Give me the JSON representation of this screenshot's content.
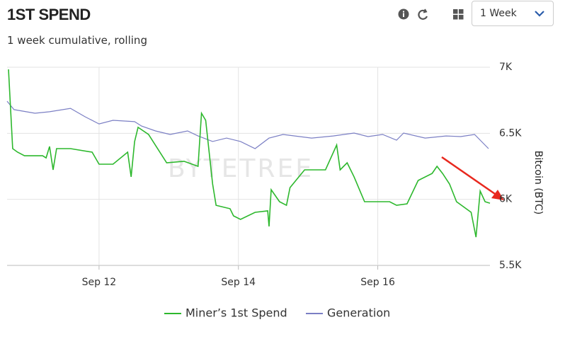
{
  "header": {
    "title": "1ST SPEND",
    "subtitle": "1 week cumulative, rolling",
    "period": "1 Week"
  },
  "chart_data": {
    "type": "line",
    "watermark": "BYTETREE",
    "y_label": "Bitcoin (BTC)",
    "xlim": [
      10.68,
      17.61
    ],
    "xticks": [
      {
        "value": 12,
        "label": "Sep 12"
      },
      {
        "value": 14,
        "label": "Sep 14"
      },
      {
        "value": 16,
        "label": "Sep 16"
      }
    ],
    "ylim": [
      5500,
      7000
    ],
    "yticks": [
      {
        "value": 5500,
        "label": "5.5K"
      },
      {
        "value": 6000,
        "label": "6K"
      },
      {
        "value": 6500,
        "label": "6.5K"
      },
      {
        "value": 7000,
        "label": "7K"
      }
    ],
    "grid": true,
    "series": [
      {
        "name": "Miner’s 1st Spend",
        "color": "#2db82d",
        "x": [
          10.7,
          10.76,
          10.83,
          10.93,
          11.19,
          11.24,
          11.29,
          11.34,
          11.39,
          11.59,
          11.9,
          12.0,
          12.2,
          12.41,
          12.46,
          12.51,
          12.56,
          12.71,
          12.97,
          13.22,
          13.42,
          13.47,
          13.53,
          13.63,
          13.68,
          13.88,
          13.93,
          14.03,
          14.24,
          14.42,
          14.44,
          14.47,
          14.59,
          14.69,
          14.74,
          14.95,
          15.25,
          15.41,
          15.46,
          15.56,
          15.66,
          15.81,
          16.17,
          16.27,
          16.42,
          16.58,
          16.78,
          16.85,
          16.93,
          17.03,
          17.13,
          17.34,
          17.41,
          17.47,
          17.54,
          17.61
        ],
        "values": [
          6984,
          6384,
          6357,
          6330,
          6330,
          6314,
          6400,
          6223,
          6384,
          6384,
          6357,
          6266,
          6266,
          6357,
          6170,
          6437,
          6545,
          6491,
          6277,
          6288,
          6250,
          6652,
          6598,
          6116,
          5955,
          5929,
          5875,
          5848,
          5902,
          5913,
          5795,
          6073,
          5982,
          5955,
          6089,
          6223,
          6223,
          6411,
          6223,
          6277,
          6170,
          5982,
          5982,
          5955,
          5966,
          6143,
          6196,
          6250,
          6196,
          6116,
          5982,
          5902,
          5714,
          6063,
          5982,
          5971
        ]
      },
      {
        "name": "Generation",
        "color": "#7b7fc4",
        "x": [
          10.68,
          10.78,
          11.08,
          11.29,
          11.59,
          11.8,
          12.0,
          12.2,
          12.51,
          12.61,
          12.81,
          13.02,
          13.27,
          13.42,
          13.63,
          13.83,
          14.03,
          14.24,
          14.44,
          14.64,
          15.05,
          15.36,
          15.66,
          15.86,
          16.07,
          16.27,
          16.37,
          16.68,
          16.98,
          17.19,
          17.39,
          17.59
        ],
        "values": [
          6743,
          6679,
          6652,
          6663,
          6689,
          6625,
          6571,
          6598,
          6588,
          6555,
          6518,
          6491,
          6518,
          6480,
          6438,
          6464,
          6438,
          6384,
          6464,
          6491,
          6464,
          6480,
          6502,
          6475,
          6491,
          6448,
          6502,
          6464,
          6480,
          6475,
          6491,
          6384
        ]
      }
    ]
  }
}
